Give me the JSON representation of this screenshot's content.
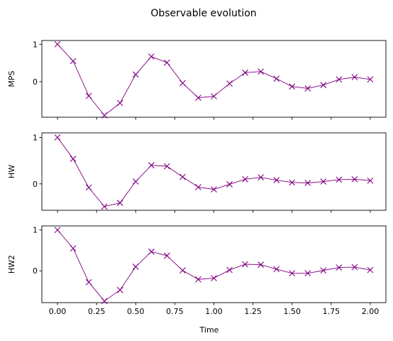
{
  "figure": {
    "title": "Observable evolution",
    "xlabel": "Time"
  },
  "colors": {
    "series": "#800080"
  },
  "chart_data": [
    {
      "type": "line",
      "marker": "x",
      "ylabel": "MPS",
      "xlim": [
        -0.1,
        2.1
      ],
      "ylim": [
        -0.95,
        1.1
      ],
      "yticks": [
        0,
        1
      ],
      "ytick_labels": [
        "0",
        "1"
      ],
      "xticks": [
        0.0,
        0.25,
        0.5,
        0.75,
        1.0,
        1.25,
        1.5,
        1.75,
        2.0
      ],
      "x": [
        0.0,
        0.1,
        0.2,
        0.3,
        0.4,
        0.5,
        0.6,
        0.7,
        0.8,
        0.9,
        1.0,
        1.1,
        1.2,
        1.3,
        1.4,
        1.5,
        1.6,
        1.7,
        1.8,
        1.9,
        2.0
      ],
      "y": [
        1.0,
        0.55,
        -0.38,
        -0.9,
        -0.57,
        0.19,
        0.67,
        0.51,
        -0.04,
        -0.43,
        -0.39,
        -0.05,
        0.24,
        0.27,
        0.08,
        -0.13,
        -0.18,
        -0.09,
        0.06,
        0.12,
        0.06
      ]
    },
    {
      "type": "line",
      "marker": "x",
      "ylabel": "HW",
      "xlim": [
        -0.1,
        2.1
      ],
      "ylim": [
        -0.57,
        1.1
      ],
      "yticks": [
        0,
        1
      ],
      "ytick_labels": [
        "0",
        "1"
      ],
      "xticks": [
        0.0,
        0.25,
        0.5,
        0.75,
        1.0,
        1.25,
        1.5,
        1.75,
        2.0
      ],
      "x": [
        0.0,
        0.1,
        0.2,
        0.3,
        0.4,
        0.5,
        0.6,
        0.7,
        0.8,
        0.9,
        1.0,
        1.1,
        1.2,
        1.3,
        1.4,
        1.5,
        1.6,
        1.7,
        1.8,
        1.9,
        2.0
      ],
      "y": [
        1.0,
        0.54,
        -0.08,
        -0.49,
        -0.41,
        0.05,
        0.4,
        0.38,
        0.15,
        -0.07,
        -0.12,
        -0.01,
        0.1,
        0.14,
        0.08,
        0.03,
        0.02,
        0.05,
        0.09,
        0.1,
        0.07
      ]
    },
    {
      "type": "line",
      "marker": "x",
      "ylabel": "HW2",
      "xlim": [
        -0.1,
        2.1
      ],
      "ylim": [
        -0.78,
        1.1
      ],
      "yticks": [
        0,
        1
      ],
      "ytick_labels": [
        "0",
        "1"
      ],
      "xticks": [
        0.0,
        0.25,
        0.5,
        0.75,
        1.0,
        1.25,
        1.5,
        1.75,
        2.0
      ],
      "xtick_labels": [
        "0.00",
        "0.25",
        "0.50",
        "0.75",
        "1.00",
        "1.25",
        "1.50",
        "1.75",
        "2.00"
      ],
      "x": [
        0.0,
        0.1,
        0.2,
        0.3,
        0.4,
        0.5,
        0.6,
        0.7,
        0.8,
        0.9,
        1.0,
        1.1,
        1.2,
        1.3,
        1.4,
        1.5,
        1.6,
        1.7,
        1.8,
        1.9,
        2.0
      ],
      "y": [
        1.0,
        0.55,
        -0.28,
        -0.74,
        -0.47,
        0.1,
        0.47,
        0.37,
        0.01,
        -0.21,
        -0.18,
        0.02,
        0.16,
        0.15,
        0.04,
        -0.06,
        -0.06,
        0.01,
        0.08,
        0.09,
        0.02
      ]
    }
  ]
}
